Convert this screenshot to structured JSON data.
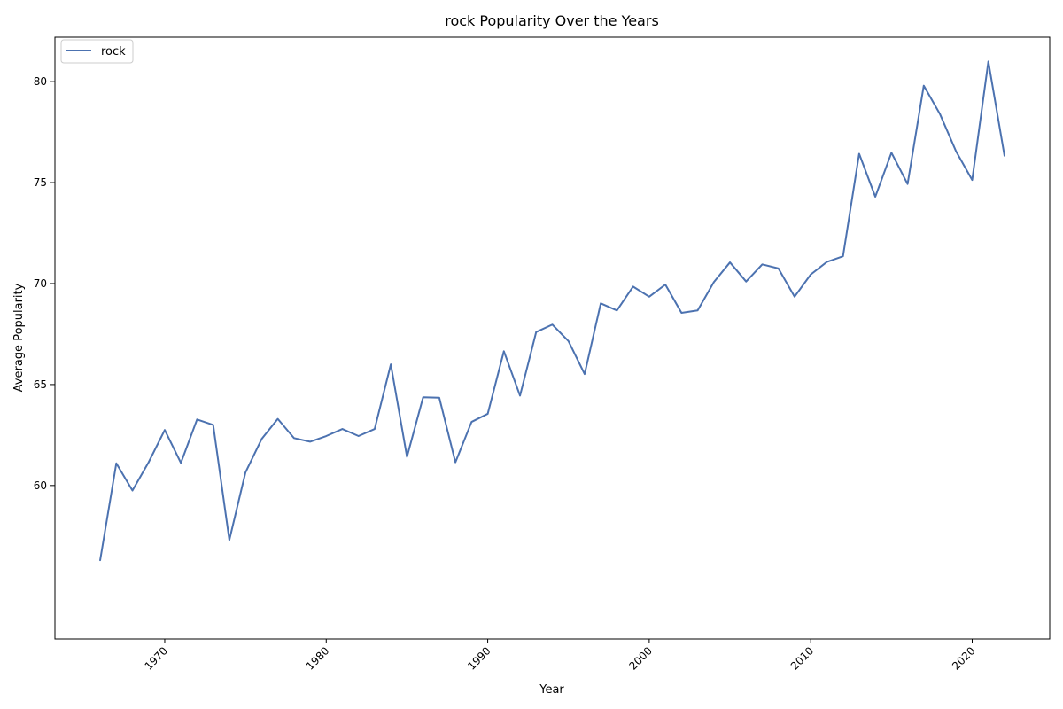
{
  "chart_data": {
    "type": "line",
    "title": "rock Popularity Over the Years",
    "xlabel": "Year",
    "ylabel": "Average Popularity",
    "xlim": [
      1963.2,
      2024.8
    ],
    "ylim": [
      52.4,
      82.2
    ],
    "x_ticks": [
      1970,
      1980,
      1990,
      2000,
      2010,
      2020
    ],
    "x_tick_labels": [
      "1970",
      "1980",
      "1990",
      "2000",
      "2010",
      "2020"
    ],
    "y_ticks": [
      60,
      65,
      70,
      75,
      80
    ],
    "y_tick_labels": [
      "60",
      "65",
      "70",
      "75",
      "80"
    ],
    "grid": false,
    "legend": {
      "position": "top-left"
    },
    "colors": {
      "series": "#4c72b0"
    },
    "series": [
      {
        "name": "rock",
        "x": [
          1966,
          1967,
          1968,
          1969,
          1970,
          1971,
          1972,
          1973,
          1974,
          1975,
          1976,
          1977,
          1978,
          1979,
          1980,
          1981,
          1982,
          1983,
          1984,
          1985,
          1986,
          1987,
          1988,
          1989,
          1990,
          1991,
          1992,
          1993,
          1994,
          1995,
          1996,
          1997,
          1998,
          1999,
          2000,
          2001,
          2002,
          2003,
          2004,
          2005,
          2006,
          2007,
          2008,
          2009,
          2010,
          2011,
          2012,
          2013,
          2014,
          2015,
          2016,
          2017,
          2018,
          2019,
          2020,
          2021,
          2022
        ],
        "values": [
          56.3,
          61.1,
          59.75,
          61.15,
          62.75,
          61.12,
          63.27,
          63.0,
          57.3,
          60.65,
          62.3,
          63.3,
          62.35,
          62.17,
          62.45,
          62.8,
          62.45,
          62.8,
          66.0,
          61.42,
          64.37,
          64.35,
          61.15,
          63.15,
          63.55,
          66.65,
          64.45,
          67.6,
          67.97,
          67.15,
          65.52,
          69.02,
          68.67,
          69.85,
          69.35,
          69.95,
          68.55,
          68.67,
          70.07,
          71.05,
          70.1,
          70.95,
          70.75,
          69.35,
          70.45,
          71.07,
          71.35,
          76.43,
          74.3,
          76.48,
          74.93,
          79.8,
          78.4,
          76.55,
          75.13,
          81.0,
          76.33
        ]
      }
    ]
  }
}
